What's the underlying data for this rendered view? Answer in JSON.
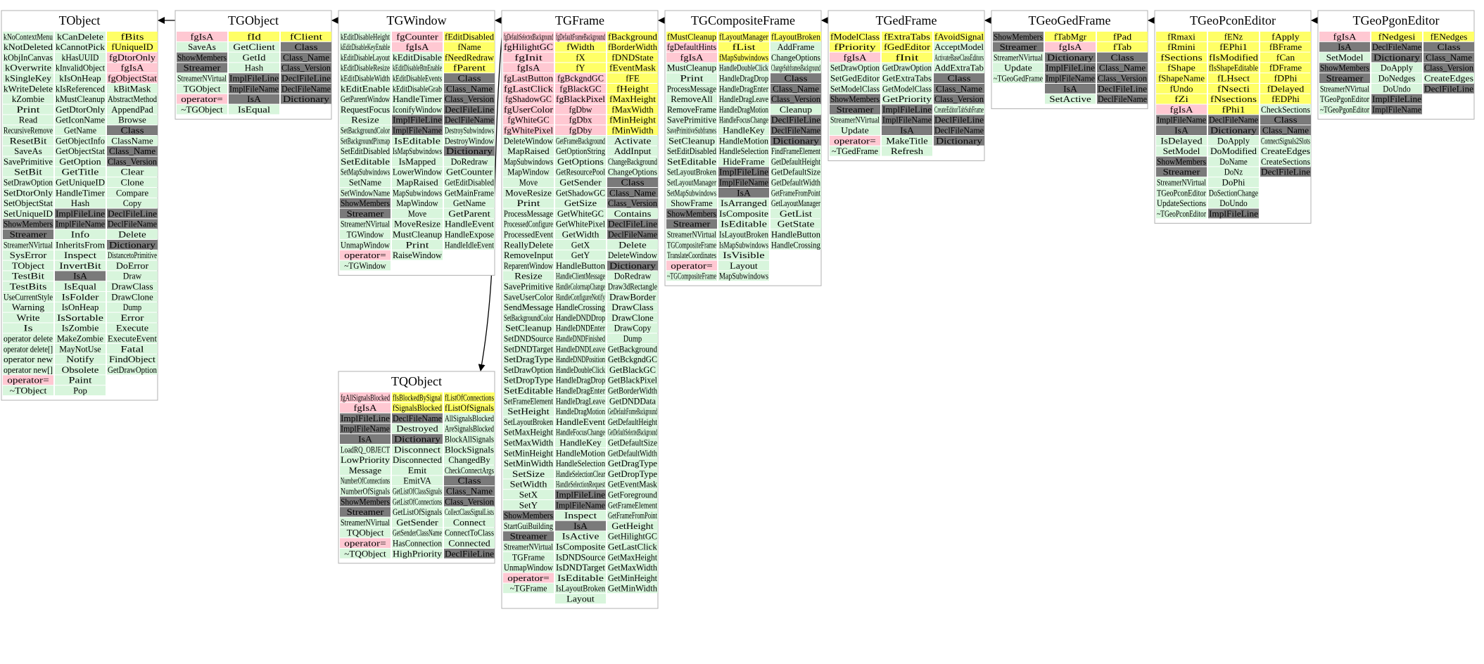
{
  "colors": {
    "method": "#d8f5dc",
    "data_member": "#ffff66",
    "data_pink": "#ffc8d2",
    "enum_gray": "#7a7a7a",
    "text": "#000000"
  },
  "classes": [
    {
      "id": "TObject",
      "title": "TObject",
      "columns": [
        [
          "kNoContextMenu",
          "kNotDeleted",
          "kObjInCanvas",
          "kOverwrite",
          "kSingleKey",
          "kWriteDelete",
          "kZombie",
          "Print",
          "Read",
          "RecursiveRemove",
          "ResetBit",
          "SaveAs",
          "SavePrimitive",
          "SetBit",
          "SetDrawOption",
          "SetDtorOnly",
          "SetObjectStat",
          "SetUniqueID",
          "ShowMembers",
          "Streamer",
          "StreamerNVirtual",
          "SysError",
          "TObject",
          "TestBit",
          "TestBits",
          "UseCurrentStyle",
          "Warning",
          "Write",
          "Is",
          "operator delete",
          "operator delete[]",
          "operator new",
          "operator new[]",
          "operator=",
          "~TObject"
        ],
        [
          "kCanDelete",
          "kCannotPick",
          "kHasUUID",
          "kInvalidObject",
          "kIsOnHeap",
          "kIsReferenced",
          "kMustCleanup",
          "GetDtorOnly",
          "GetIconName",
          "GetName",
          "GetObjectInfo",
          "GetObjectStat",
          "GetOption",
          "GetTitle",
          "GetUniqueID",
          "HandleTimer",
          "Hash",
          "ImplFileLine",
          "ImplFileName",
          "Info",
          "InheritsFrom",
          "Inspect",
          "InvertBit",
          "IsA",
          "IsEqual",
          "IsFolder",
          "IsOnHeap",
          "IsSortable",
          "IsZombie",
          "MakeZombie",
          "MayNotUse",
          "Notify",
          "Obsolete",
          "Paint",
          "Pop"
        ],
        [
          "fBits",
          "fUniqueID",
          "fgDtorOnly",
          "fgIsA",
          "fgObjectStat",
          "kBitMask",
          "AbstractMethod",
          "AppendPad",
          "Browse",
          "Class",
          "ClassName",
          "Class_Name",
          "Class_Version",
          "Clear",
          "Clone",
          "Compare",
          "Copy",
          "DeclFileLine",
          "DeclFileName",
          "Delete",
          "Dictionary",
          "DistancetoPrimitive",
          "DoError",
          "Draw",
          "DrawClass",
          "DrawClone",
          "Dump",
          "Error",
          "Execute",
          "ExecuteEvent",
          "Fatal",
          "FindObject",
          "GetDrawOption"
        ]
      ]
    },
    {
      "id": "TGObject",
      "title": "TGObject",
      "columns": [
        [
          "fgIsA",
          "SaveAs",
          "ShowMembers",
          "Streamer",
          "StreamerNVirtual",
          "TGObject",
          "operator=",
          "~TGObject"
        ],
        [
          "fId",
          "GetClient",
          "GetId",
          "Hash",
          "ImplFileLine",
          "ImplFileName",
          "IsA",
          "IsEqual"
        ],
        [
          "fClient",
          "Class",
          "Class_Name",
          "Class_Version",
          "DeclFileLine",
          "DeclFileName",
          "Dictionary"
        ]
      ]
    },
    {
      "id": "TGWindow",
      "title": "TGWindow",
      "columns": [
        [
          "kEditDisableHeight",
          "kEditDisableKeyEnable",
          "kEditDisableLayout",
          "kEditDisableResize",
          "kEditDisableWidth",
          "kEditEnable",
          "GetParentWindow",
          "RequestFocus",
          "Resize",
          "SetBackgroundColor",
          "SetBackgroundPixmap",
          "SetEditDisabled",
          "SetEditable",
          "SetMapSubwindows",
          "SetName",
          "SetWindowName",
          "ShowMembers",
          "Streamer",
          "StreamerNVirtual",
          "TGWindow",
          "UnmapWindow",
          "operator=",
          "~TGWindow"
        ],
        [
          "fgCounter",
          "fgIsA",
          "kEditDisable",
          "kEditDisableBtnEnable",
          "kEditDisableEvents",
          "kEditDisableGrab",
          "HandleTimer",
          "IconifyWindow",
          "ImplFileLine",
          "ImplFileName",
          "IsEditable",
          "IsMapSubwindows",
          "IsMapped",
          "LowerWindow",
          "MapRaised",
          "MapSubwindows",
          "MapWindow",
          "Move",
          "MoveResize",
          "MustCleanup",
          "Print",
          "RaiseWindow"
        ],
        [
          "fEditDisabled",
          "fName",
          "fNeedRedraw",
          "fParent",
          "Class",
          "Class_Name",
          "Class_Version",
          "DeclFileLine",
          "DeclFileName",
          "DestroySubwindows",
          "DestroyWindow",
          "Dictionary",
          "DoRedraw",
          "GetCounter",
          "GetEditDisabled",
          "GetMainFrame",
          "GetName",
          "GetParent",
          "HandleEvent",
          "HandleExpose",
          "HandleIdleEvent"
        ]
      ]
    },
    {
      "id": "TGFrame",
      "title": "TGFrame",
      "columns": [
        [
          "fgDefaultSelectedBackground",
          "fgHilightGC",
          "fgInit",
          "fgIsA",
          "fgLastButton",
          "fgLastClick",
          "fgShadowGC",
          "fgUserColor",
          "fgWhiteGC",
          "fgWhitePixel",
          "DeleteWindow",
          "MapRaised",
          "MapSubwindows",
          "MapWindow",
          "Move",
          "MoveResize",
          "Print",
          "ProcessMessage",
          "ProcessedConfigure",
          "ProcessedEvent",
          "ReallyDelete",
          "RemoveInput",
          "ReparentWindow",
          "Resize",
          "SavePrimitive",
          "SaveUserColor",
          "SendMessage",
          "SetBackgroundColor",
          "SetCleanup",
          "SetDNDSource",
          "SetDNDTarget",
          "SetDragType",
          "SetDrawOption",
          "SetDropType",
          "SetEditable",
          "SetFrameElement",
          "SetHeight",
          "SetLayoutBroken",
          "SetMaxHeight",
          "SetMaxWidth",
          "SetMinHeight",
          "SetMinWidth",
          "SetSize",
          "SetWidth",
          "SetX",
          "SetY",
          "ShowMembers",
          "StartGuiBuilding",
          "Streamer",
          "StreamerNVirtual",
          "TGFrame",
          "UnmapWindow",
          "operator=",
          "~TGFrame"
        ],
        [
          "fgDefaultFrameBackground",
          "fWidth",
          "fX",
          "fY",
          "fgBckgndGC",
          "fgBlackGC",
          "fgBlackPixel",
          "fgDbw",
          "fgDbx",
          "fgDby",
          "GetFrameBackground",
          "GetOptionString",
          "GetOptions",
          "GetResourcePool",
          "GetSender",
          "GetShadowGC",
          "GetSize",
          "GetWhiteGC",
          "GetWhitePixel",
          "GetWidth",
          "GetX",
          "GetY",
          "HandleButton",
          "HandleClientMessage",
          "HandleColormapChange",
          "HandleConfigureNotify",
          "HandleCrossing",
          "HandleDNDDrop",
          "HandleDNDEnter",
          "HandleDNDFinished",
          "HandleDNDLeave",
          "HandleDNDPosition",
          "HandleDoubleClick",
          "HandleDragDrop",
          "HandleDragEnter",
          "HandleDragLeave",
          "HandleDragMotion",
          "HandleEvent",
          "HandleFocusChange",
          "HandleKey",
          "HandleMotion",
          "HandleSelection",
          "HandleSelectionClear",
          "HandleSelectionRequest",
          "ImplFileLine",
          "ImplFileName",
          "Inspect",
          "IsA",
          "IsActive",
          "IsComposite",
          "IsDNDSource",
          "IsDNDTarget",
          "IsEditable",
          "IsLayoutBroken",
          "Layout"
        ],
        [
          "fBackground",
          "fBorderWidth",
          "fDNDState",
          "fEventMask",
          "fFE",
          "fHeight",
          "fMaxHeight",
          "fMaxWidth",
          "fMinHeight",
          "fMinWidth",
          "Activate",
          "AddInput",
          "ChangeBackground",
          "ChangeOptions",
          "Class",
          "Class_Name",
          "Class_Version",
          "Contains",
          "DeclFileLine",
          "DeclFileName",
          "Delete",
          "DeleteWindow",
          "Dictionary",
          "DoRedraw",
          "Draw3dRectangle",
          "DrawBorder",
          "DrawClass",
          "DrawClone",
          "DrawCopy",
          "Dump",
          "GetBackground",
          "GetBckgndGC",
          "GetBlackGC",
          "GetBlackPixel",
          "GetBorderWidth",
          "GetDNDData",
          "GetDefaultFrameBackground",
          "GetDefaultHeight",
          "GetDefaultSelectedBackground",
          "GetDefaultSize",
          "GetDefaultWidth",
          "GetDragType",
          "GetDropType",
          "GetEventMask",
          "GetForeground",
          "GetFrameElement",
          "GetFrameFromPoint",
          "GetHeight",
          "GetHilightGC",
          "GetLastClick",
          "GetMaxHeight",
          "GetMaxWidth",
          "GetMinHeight",
          "GetMinWidth"
        ]
      ]
    },
    {
      "id": "TGCompositeFrame",
      "title": "TGCompositeFrame",
      "columns": [
        [
          "fMustCleanup",
          "fgDefaultHints",
          "fgIsA",
          "MustCleanup",
          "Print",
          "ProcessMessage",
          "RemoveAll",
          "RemoveFrame",
          "SavePrimitive",
          "SavePrimitiveSubframes",
          "SetCleanup",
          "SetEditDisabled",
          "SetEditable",
          "SetLayoutBroken",
          "SetLayoutManager",
          "SetMapSubwindows",
          "ShowFrame",
          "ShowMembers",
          "Streamer",
          "StreamerNVirtual",
          "TGCompositeFrame",
          "TranslateCoordinates",
          "operator=",
          "~TGCompositeFrame"
        ],
        [
          "fLayoutManager",
          "fList",
          "fMapSubwindows",
          "HandleDoubleClick",
          "HandleDragDrop",
          "HandleDragEnter",
          "HandleDragLeave",
          "HandleDragMotion",
          "HandleFocusChange",
          "HandleKey",
          "HandleMotion",
          "HandleSelection",
          "HideFrame",
          "ImplFileLine",
          "ImplFileName",
          "IsA",
          "IsArranged",
          "IsComposite",
          "IsEditable",
          "IsLayoutBroken",
          "IsMapSubwindows",
          "IsVisible",
          "Layout",
          "MapSubwindows"
        ],
        [
          "fLayoutBroken",
          "AddFrame",
          "ChangeOptions",
          "ChangeSubframesBackground",
          "Class",
          "Class_Name",
          "Class_Version",
          "Cleanup",
          "DeclFileLine",
          "DeclFileName",
          "Dictionary",
          "FindFrameElement",
          "GetDefaultHeight",
          "GetDefaultSize",
          "GetDefaultWidth",
          "GetFrameFromPoint",
          "GetLayoutManager",
          "GetList",
          "GetState",
          "HandleButton",
          "HandleCrossing"
        ]
      ]
    },
    {
      "id": "TGedFrame",
      "title": "TGedFrame",
      "columns": [
        [
          "fModelClass",
          "fPriority",
          "fgIsA",
          "SetDrawOption",
          "SetGedEditor",
          "SetModelClass",
          "ShowMembers",
          "Streamer",
          "StreamerNVirtual",
          "Update",
          "operator=",
          "~TGedFrame"
        ],
        [
          "fExtraTabs",
          "fGedEditor",
          "fInit",
          "GetDrawOption",
          "GetExtraTabs",
          "GetModelClass",
          "GetPriority",
          "ImplFileLine",
          "ImplFileName",
          "IsA",
          "MakeTitle",
          "Refresh"
        ],
        [
          "fAvoidSignal",
          "AcceptModel",
          "ActivateBaseClassEditors",
          "AddExtraTab",
          "Class",
          "Class_Name",
          "Class_Version",
          "CreateEditorTabSubFrame",
          "DeclFileLine",
          "DeclFileName",
          "Dictionary"
        ]
      ]
    },
    {
      "id": "TGeoGedFrame",
      "title": "TGeoGedFrame",
      "columns": [
        [
          "ShowMembers",
          "Streamer",
          "StreamerNVirtual",
          "Update",
          "~TGeoGedFrame"
        ],
        [
          "fTabMgr",
          "fgIsA",
          "Dictionary",
          "ImplFileLine",
          "ImplFileName",
          "IsA",
          "SetActive"
        ],
        [
          "fPad",
          "fTab",
          "Class",
          "Class_Name",
          "Class_Version",
          "DeclFileLine",
          "DeclFileName"
        ]
      ]
    },
    {
      "id": "TGeoPconEditor",
      "title": "TGeoPconEditor",
      "columns": [
        [
          "fRmaxi",
          "fRmini",
          "fSections",
          "fShape",
          "fShapeName",
          "fUndo",
          "fZi",
          "fgIsA",
          "ImplFileName",
          "IsA",
          "IsDelayed",
          "SetModel",
          "ShowMembers",
          "Streamer",
          "StreamerNVirtual",
          "TGeoPconEditor",
          "UpdateSections",
          "~TGeoPconEditor"
        ],
        [
          "fENz",
          "fEPhi1",
          "fIsModified",
          "fIsShapeEditable",
          "fLHsect",
          "fNsecti",
          "fNsections",
          "fPhi1",
          "DeclFileName",
          "Dictionary",
          "DoApply",
          "DoModified",
          "DoName",
          "DoNz",
          "DoPhi",
          "DoSectionChange",
          "DoUndo",
          "ImplFileLine"
        ],
        [
          "fApply",
          "fBFrame",
          "fCan",
          "fDFrame",
          "fDPhi",
          "fDelayed",
          "fEDPhi",
          "CheckSections",
          "Class",
          "Class_Name",
          "ConnectSignals2Slots",
          "CreateEdges",
          "CreateSections",
          "DeclFileLine"
        ]
      ]
    },
    {
      "id": "TGeoPgonEditor",
      "title": "TGeoPgonEditor",
      "columns": [
        [
          "fgIsA",
          "IsA",
          "SetModel",
          "ShowMembers",
          "Streamer",
          "StreamerNVirtual",
          "TGeoPgonEditor",
          "~TGeoPgonEditor"
        ],
        [
          "fNedgesi",
          "DeclFileName",
          "Dictionary",
          "DoApply",
          "DoNedges",
          "DoUndo",
          "ImplFileLine",
          "ImplFileName"
        ],
        [
          "fENedges",
          "Class",
          "Class_Name",
          "Class_Version",
          "CreateEdges",
          "DeclFileLine"
        ]
      ]
    },
    {
      "id": "TQObject",
      "title": "TQObject",
      "columns": [
        [
          "fgAllSignalsBlocked",
          "fgIsA",
          "ImplFileLine",
          "ImplFileName",
          "IsA",
          "LoadRQ_OBJECT",
          "LowPriority",
          "Message",
          "NumberOfConnections",
          "NumberOfSignals",
          "ShowMembers",
          "Streamer",
          "StreamerNVirtual",
          "TQObject",
          "operator=",
          "~TQObject"
        ],
        [
          "fIsBlockedBySignal",
          "fSignalsBlocked",
          "DeclFileName",
          "Destroyed",
          "Dictionary",
          "Disconnect",
          "Disconnected",
          "Emit",
          "EmitVA",
          "GetListOfClassSignals",
          "GetListOfConnections",
          "GetListOfSignals",
          "GetSender",
          "GetSenderClassName",
          "HasConnection",
          "HighPriority"
        ],
        [
          "fListOfConnections",
          "fListOfSignals",
          "AllSignalsBlocked",
          "AreSignalsBlocked",
          "BlockAllSignals",
          "BlockSignals",
          "ChangedBy",
          "CheckConnectArgs",
          "Class",
          "Class_Name",
          "Class_Version",
          "CollectClassSignalLists",
          "Connect",
          "ConnectToClass",
          "Connected",
          "DeclFileLine"
        ]
      ]
    }
  ]
}
